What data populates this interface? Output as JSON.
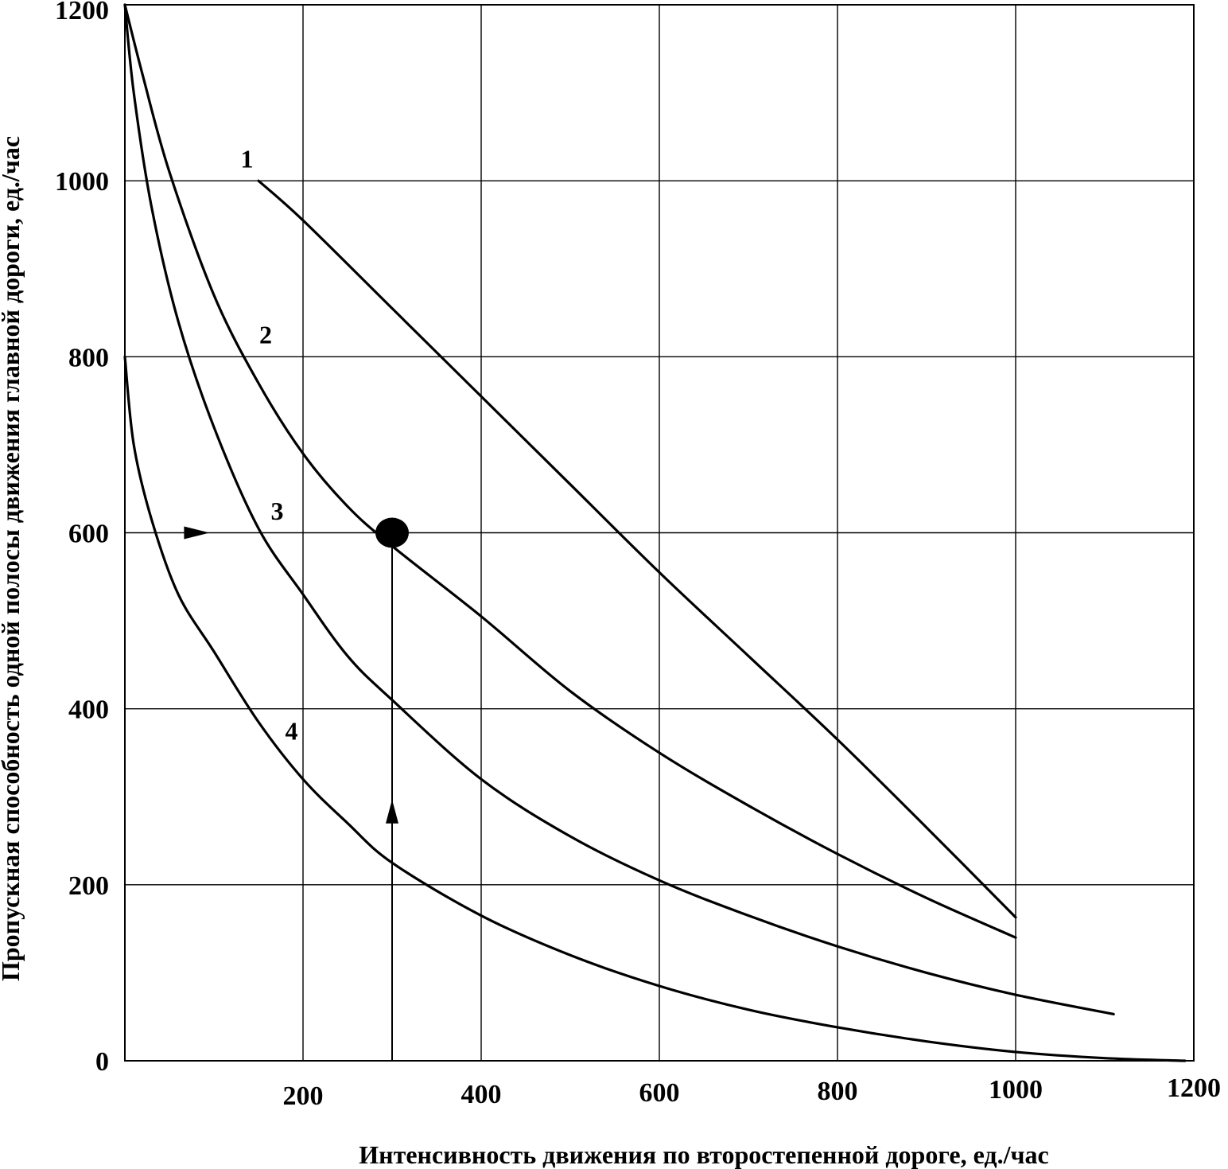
{
  "chart_data": {
    "type": "line",
    "title": "",
    "xlabel": "Интенсивность движения по второстепенной дороге, ед./час",
    "ylabel": "Пропускная способность одной полосы движения главной дороги, ед./час",
    "xlim": [
      0,
      1200
    ],
    "ylim": [
      0,
      1200
    ],
    "x_ticks": [
      "200",
      "400",
      "600",
      "800",
      "1000",
      "1200"
    ],
    "y_ticks": [
      "0",
      "200",
      "400",
      "600",
      "800",
      "1000",
      "1200"
    ],
    "grid": true,
    "series": [
      {
        "name": "1",
        "x": [
          150,
          200,
          300,
          400,
          500,
          600,
          700,
          800,
          900,
          1000
        ],
        "y": [
          1000,
          955,
          855,
          755,
          655,
          555,
          460,
          365,
          265,
          163
        ]
      },
      {
        "name": "2",
        "x": [
          0,
          20,
          50,
          100,
          150,
          200,
          250,
          300,
          400,
          500,
          600,
          700,
          800,
          900,
          1000
        ],
        "y": [
          1200,
          1120,
          1010,
          870,
          770,
          690,
          630,
          585,
          505,
          420,
          350,
          290,
          235,
          185,
          140
        ]
      },
      {
        "name": "3",
        "x": [
          0,
          10,
          30,
          60,
          100,
          150,
          200,
          250,
          300,
          400,
          500,
          600,
          700,
          800,
          900,
          1000,
          1110
        ],
        "y": [
          1200,
          1100,
          970,
          840,
          720,
          605,
          530,
          460,
          410,
          320,
          255,
          205,
          165,
          130,
          100,
          75,
          53
        ]
      },
      {
        "name": "4",
        "x": [
          0,
          10,
          30,
          60,
          100,
          150,
          200,
          250,
          300,
          400,
          500,
          600,
          700,
          800,
          900,
          1000,
          1100,
          1190
        ],
        "y": [
          800,
          700,
          615,
          530,
          465,
          385,
          320,
          270,
          225,
          165,
          120,
          85,
          58,
          38,
          22,
          10,
          3,
          0
        ]
      }
    ],
    "labels": [
      {
        "text": "1",
        "x": 137,
        "y": 1015
      },
      {
        "text": "2",
        "x": 158,
        "y": 815
      },
      {
        "text": "3",
        "x": 171,
        "y": 615
      },
      {
        "text": "4",
        "x": 187,
        "y": 365
      }
    ],
    "annotations": {
      "point": {
        "x": 300,
        "y": 600
      },
      "vertical_guide": {
        "x": 300,
        "from": 0,
        "to": 600
      },
      "up_arrow": {
        "x": 300,
        "y": 295
      },
      "right_arrow": {
        "x": 95,
        "y": 600
      }
    }
  }
}
